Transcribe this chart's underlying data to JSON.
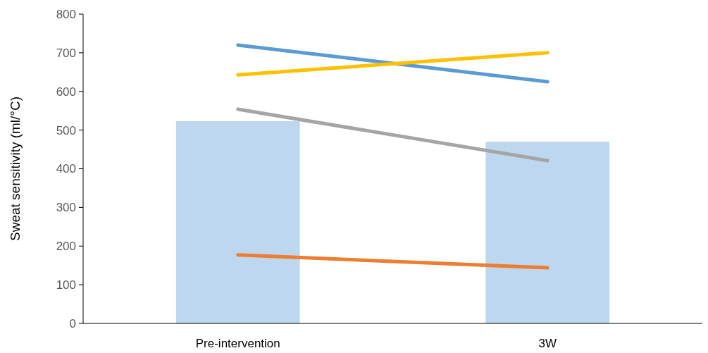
{
  "chart_data": {
    "type": "bar",
    "ylabel": "Sweat sensitivity (ml/°C)",
    "categories": [
      "Pre-intervention",
      "3W"
    ],
    "ylim": [
      0,
      800
    ],
    "yticks": [
      0,
      100,
      200,
      300,
      400,
      500,
      600,
      700,
      800
    ],
    "grid": false,
    "series": [
      {
        "color": "#bdd7ee",
        "values": [
          523,
          470
        ]
      },
      {
        "type": "line",
        "color": "#5b9bd5",
        "values": [
          720,
          625
        ]
      },
      {
        "type": "line",
        "color": "#ffc000",
        "values": [
          643,
          700
        ]
      },
      {
        "type": "line",
        "color": "#a5a5a5",
        "values": [
          554,
          421
        ]
      },
      {
        "type": "line",
        "color": "#ed7d31",
        "values": [
          177,
          144
        ]
      }
    ]
  }
}
